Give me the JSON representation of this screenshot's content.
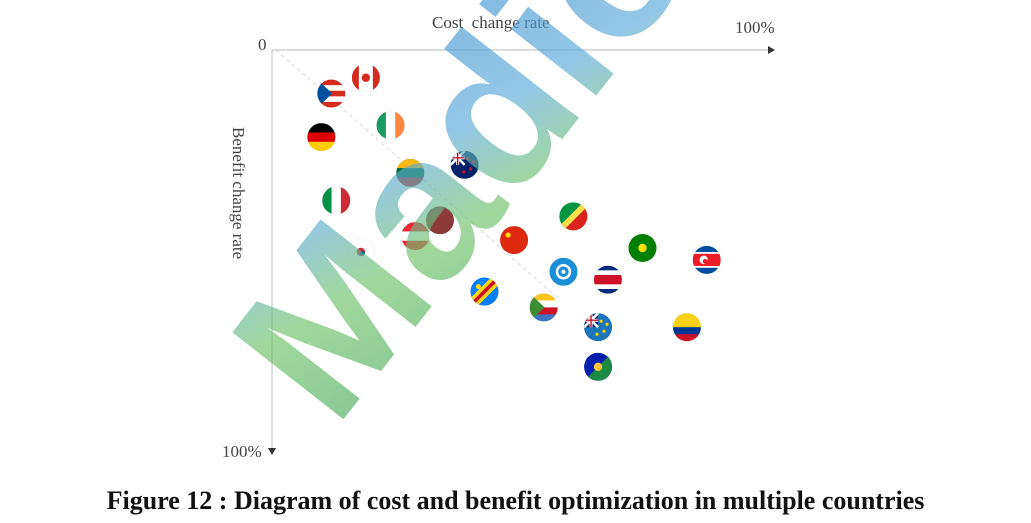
{
  "caption": "Figure 12 : Diagram of cost and benefit optimization in multiple countries",
  "watermark": "Madio",
  "chart_data": {
    "type": "scatter",
    "xlabel": "Cost  change rate",
    "ylabel": "Benefit change rate",
    "origin_label": "0",
    "x_end_label": "100%",
    "y_end_label": "100%",
    "xlim": [
      0,
      100
    ],
    "ylim": [
      0,
      100
    ],
    "y_axis_direction": "downward",
    "grid": false,
    "points": [
      {
        "flag": "puerto-rico-flag",
        "x": 12,
        "y": 11
      },
      {
        "flag": "canada-flag",
        "x": 19,
        "y": 7
      },
      {
        "flag": "germany-flag",
        "x": 10,
        "y": 22
      },
      {
        "flag": "ireland-flag",
        "x": 24,
        "y": 19
      },
      {
        "flag": "lithuania-flag",
        "x": 28,
        "y": 31
      },
      {
        "flag": "new-zealand-flag",
        "x": 39,
        "y": 29
      },
      {
        "flag": "italy-flag",
        "x": 13,
        "y": 38
      },
      {
        "flag": "austria-flag",
        "x": 29,
        "y": 47
      },
      {
        "flag": "south-korea-flag",
        "x": 18,
        "y": 51
      },
      {
        "flag": "china-flag",
        "x": 49,
        "y": 48
      },
      {
        "flag": "congo-flag",
        "x": 61,
        "y": 42
      },
      {
        "flag": "bangladesh-flag",
        "x": 34,
        "y": 43
      },
      {
        "flag": "dr-congo-flag",
        "x": 43,
        "y": 61
      },
      {
        "flag": "comoros-flag",
        "x": 55,
        "y": 65
      },
      {
        "flag": "un-flag",
        "x": 59,
        "y": 56
      },
      {
        "flag": "costa-rica-flag",
        "x": 68,
        "y": 58
      },
      {
        "flag": "tuvalu-flag",
        "x": 66,
        "y": 70
      },
      {
        "flag": "christmas-island-flag",
        "x": 66,
        "y": 80
      },
      {
        "flag": "cocos-islands-flag",
        "x": 75,
        "y": 50
      },
      {
        "flag": "north-korea-flag",
        "x": 88,
        "y": 53
      },
      {
        "flag": "colombia-flag",
        "x": 84,
        "y": 70
      }
    ]
  }
}
